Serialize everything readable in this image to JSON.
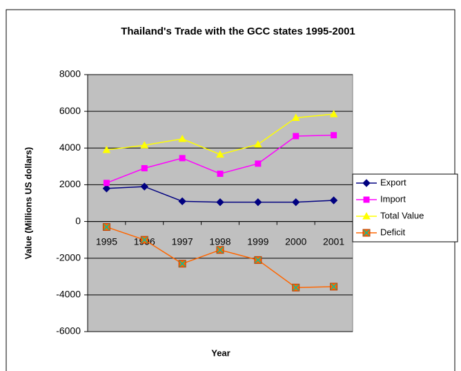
{
  "chart_data": {
    "type": "line",
    "title": "Thailand's Trade with the GCC states 1995-2001",
    "x_label": "Year",
    "y_label": "Value (Millions US dollars)",
    "categories": [
      "1995",
      "1996",
      "1997",
      "1998",
      "1999",
      "2000",
      "2001"
    ],
    "series": [
      {
        "name": "Export",
        "color": "#000080",
        "marker": "diamond",
        "values": [
          1800,
          1900,
          1100,
          1050,
          1050,
          1050,
          1150
        ]
      },
      {
        "name": "Import",
        "color": "#ff00ff",
        "marker": "square",
        "values": [
          2100,
          2900,
          3450,
          2600,
          3150,
          4650,
          4700
        ]
      },
      {
        "name": "Total Value",
        "color": "#ffff00",
        "marker": "triangle",
        "values": [
          3900,
          4150,
          4500,
          3650,
          4200,
          5650,
          5850
        ]
      },
      {
        "name": "Deficit",
        "color": "#ff6600",
        "marker": "xsquare",
        "values": [
          -300,
          -1000,
          -2300,
          -1550,
          -2100,
          -3600,
          -3550
        ]
      }
    ],
    "ylim": [
      -6000,
      8000
    ],
    "yticks": [
      -6000,
      -4000,
      -2000,
      0,
      2000,
      4000,
      6000,
      8000
    ],
    "grid": true,
    "legend": "right"
  }
}
